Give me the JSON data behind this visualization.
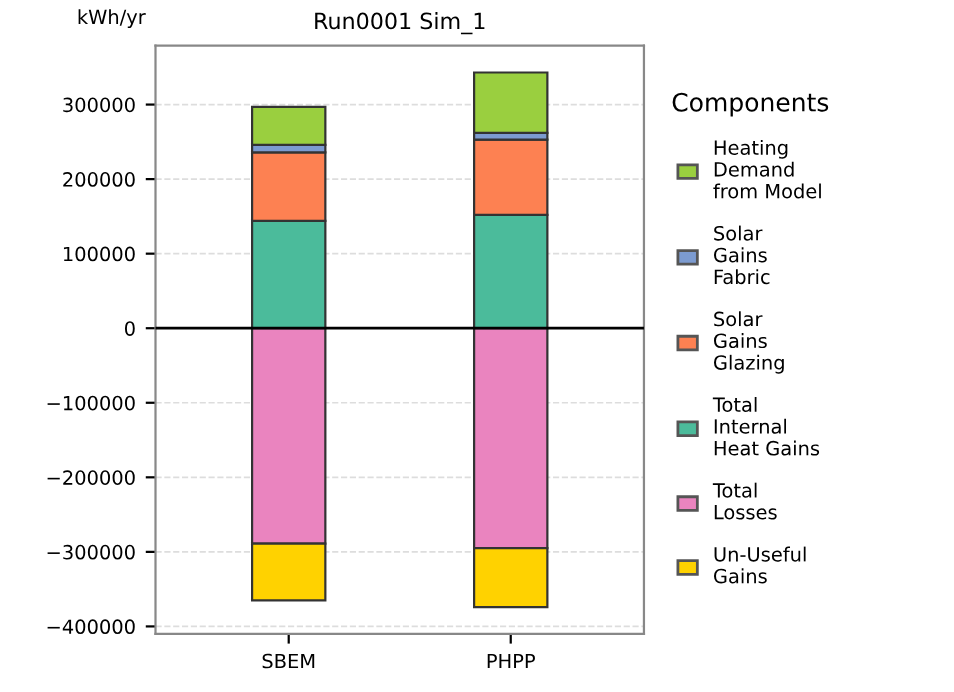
{
  "chart_data": {
    "type": "bar",
    "title": "Run0001 Sim_1",
    "ylabel": "kWh/yr",
    "legend_title": "Components",
    "categories": [
      "SBEM",
      "PHPP"
    ],
    "stacked": true,
    "series": [
      {
        "name": "Total Internal Heat Gains",
        "color": "#4bbb9b",
        "values": [
          144000,
          152000
        ]
      },
      {
        "name": "Solar Gains Glazing",
        "color": "#fd8152",
        "values": [
          92000,
          101000
        ]
      },
      {
        "name": "Solar Gains Fabric",
        "color": "#7c9bd0",
        "values": [
          10000,
          9000
        ]
      },
      {
        "name": "Heating Demand from Model",
        "color": "#9acf3f",
        "values": [
          51000,
          81000
        ]
      },
      {
        "name": "Total Losses",
        "color": "#ea84bf",
        "values": [
          -289000,
          -295000
        ]
      },
      {
        "name": "Un-Useful Gains",
        "color": "#ffd200",
        "values": [
          -76000,
          -79000
        ]
      }
    ],
    "ylim": [
      -410000,
      379000
    ],
    "yticks": [
      {
        "value": -400000,
        "label": "−400000"
      },
      {
        "value": -300000,
        "label": "−300000"
      },
      {
        "value": -200000,
        "label": "−200000"
      },
      {
        "value": -100000,
        "label": "−100000"
      },
      0,
      100000,
      200000,
      300000
    ],
    "ref_lines": [
      {
        "axis": "y",
        "value": 0,
        "color": "#000000"
      }
    ],
    "grid": "y",
    "legend": "right"
  }
}
